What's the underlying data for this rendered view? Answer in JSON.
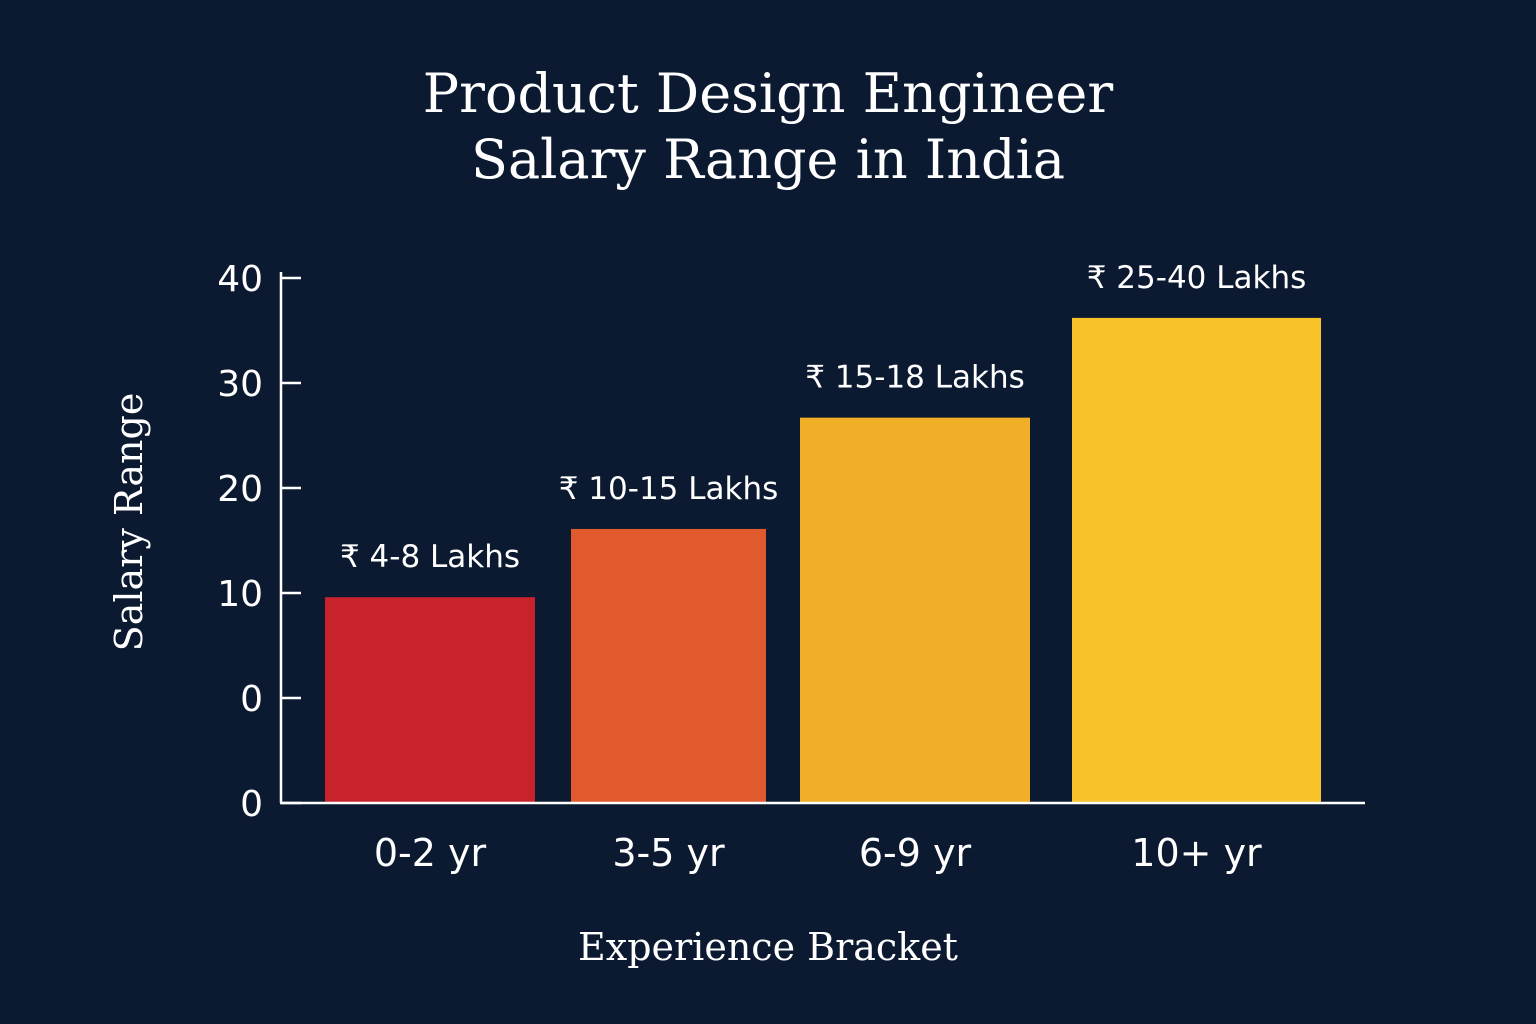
{
  "chart_data": {
    "type": "bar",
    "title_lines": [
      "Product Design Engineer",
      "Salary Range in India"
    ],
    "xlabel": "Experience Bracket",
    "ylabel": "Salary Range",
    "y_tick_labels": [
      "40",
      "30",
      "20",
      "10",
      "0",
      "0"
    ],
    "ylim": [
      -10,
      40
    ],
    "grid": false,
    "legend": "none",
    "categories": [
      "0-2 yr",
      "3-5 yr",
      "6-9 yr",
      "10+ yr"
    ],
    "values": [
      9.6,
      16.1,
      26.7,
      36.2
    ],
    "bar_labels": [
      "₹ 4-8 Lakhs",
      "₹ 10-15 Lakhs",
      "₹ 15-18 Lakhs",
      "₹ 25-40 Lakhs"
    ],
    "colors": [
      "#c8232b",
      "#e05a2e",
      "#f1ae27",
      "#f7c329"
    ],
    "background": "#0b1a31",
    "axis_color": "#ffffff"
  }
}
